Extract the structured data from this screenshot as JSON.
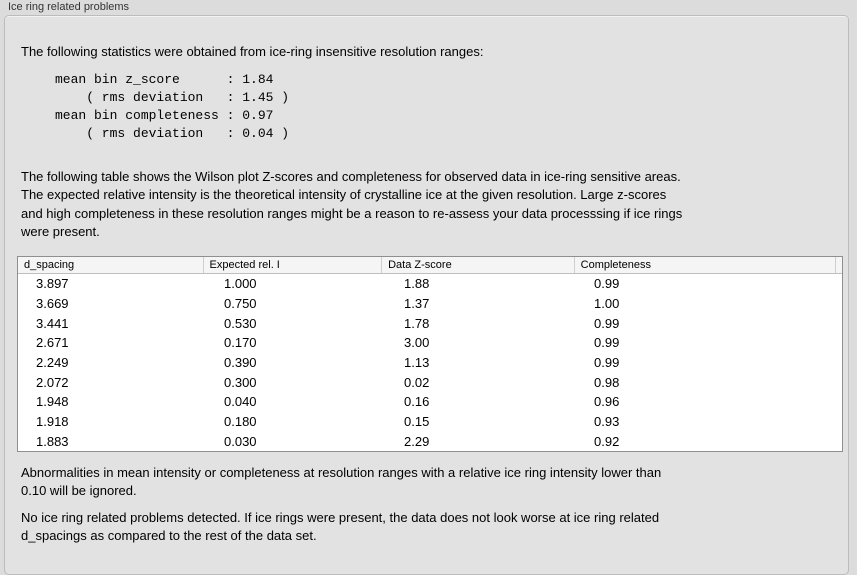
{
  "panel": {
    "title": "Ice ring related problems"
  },
  "intro_text": "The following statistics were obtained from ice-ring insensitive resolution ranges:",
  "stats": {
    "lines": [
      "mean bin z_score      : 1.84",
      "    ( rms deviation   : 1.45 )",
      "mean bin completeness : 0.97",
      "    ( rms deviation   : 0.04 )"
    ]
  },
  "table_intro_lines": [
    "The following table shows the Wilson plot Z-scores and completeness for observed data in ice-ring sensitive areas.",
    "The expected relative intensity is the theoretical intensity of crystalline ice at the given resolution. Large z-scores",
    "and high completeness in these resolution ranges might be a reason to re-assess your data processsing if ice rings",
    "were present."
  ],
  "table": {
    "columns": [
      "d_spacing",
      "Expected rel. I",
      "Data Z-score",
      "Completeness"
    ],
    "rows": [
      [
        "3.897",
        "1.000",
        "1.88",
        "0.99"
      ],
      [
        "3.669",
        "0.750",
        "1.37",
        "1.00"
      ],
      [
        "3.441",
        "0.530",
        "1.78",
        "0.99"
      ],
      [
        "2.671",
        "0.170",
        "3.00",
        "0.99"
      ],
      [
        "2.249",
        "0.390",
        "1.13",
        "0.99"
      ],
      [
        "2.072",
        "0.300",
        "0.02",
        "0.98"
      ],
      [
        "1.948",
        "0.040",
        "0.16",
        "0.96"
      ],
      [
        "1.918",
        "0.180",
        "0.15",
        "0.93"
      ],
      [
        "1.883",
        "0.030",
        "2.29",
        "0.92"
      ]
    ]
  },
  "ignore_note_lines": [
    "Abnormalities in mean intensity or completeness at resolution ranges with a relative ice ring intensity lower than",
    "0.10 will be ignored."
  ],
  "conclusion_lines": [
    "No ice ring related problems detected. If ice rings were present, the data does not look worse at ice ring related",
    "d_spacings as compared to the rest of the data set."
  ]
}
